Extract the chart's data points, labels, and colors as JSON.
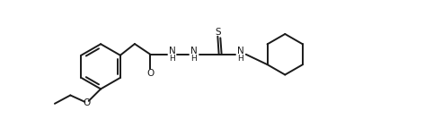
{
  "background_color": "#ffffff",
  "line_color": "#1a1a1a",
  "text_color": "#1a1a1a",
  "line_width": 1.4,
  "font_size": 7.5,
  "figsize": [
    4.92,
    1.52
  ],
  "dpi": 100,
  "xlim": [
    0,
    14
  ],
  "ylim": [
    0,
    4.5
  ]
}
